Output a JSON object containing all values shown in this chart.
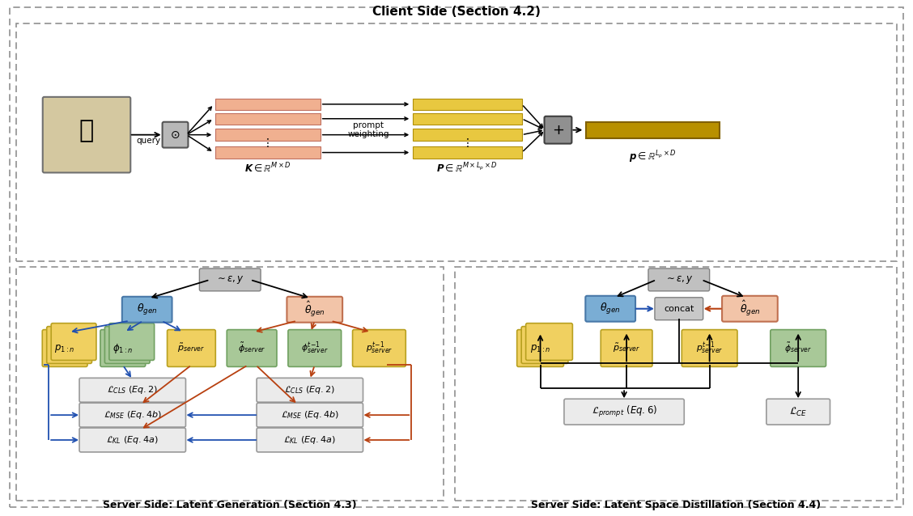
{
  "title": "Client Side (Section 4.2)",
  "bottom_left_title": "Server Side: Latent Generation (Section 4.3)",
  "bottom_right_title": "Server Side: Latent Space Distillation (Section 4.4)",
  "colors": {
    "blue_box": "#7aadd4",
    "orange_box": "#f2c4a8",
    "yellow_box": "#f0d060",
    "green_box": "#a8c898",
    "gray_box": "#b0b0b0",
    "loss_box_bg": "#ebebeb",
    "loss_box_edge": "#999999",
    "salmon_bar": "#f0b090",
    "dark_yellow_bar": "#b89000",
    "arrow_blue": "#2050b0",
    "arrow_orange": "#b84010",
    "background": "#ffffff",
    "dashed_border": "#909090"
  },
  "fig_width": 11.28,
  "fig_height": 6.38
}
